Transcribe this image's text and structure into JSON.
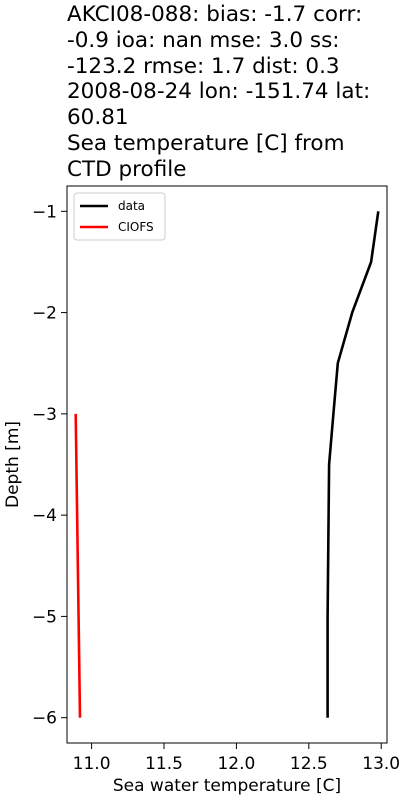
{
  "chart_data": {
    "type": "line",
    "title": "AKCI08-088: bias: -1.7  corr:\n-0.9  ioa: nan  mse: 3.0  ss:\n-123.2  rmse: 1.7  dist: 0.3\n2008-08-24 lon: -151.74 lat:\n60.81\nSea temperature [C] from\nCTD profile",
    "xlabel": "Sea water temperature [C]",
    "ylabel": "Depth [m]",
    "xlim": [
      10.83,
      13.04
    ],
    "ylim": [
      -6.25,
      -0.75
    ],
    "xticks": [
      11.0,
      11.5,
      12.0,
      12.5,
      13.0
    ],
    "xtick_labels": [
      "11.0",
      "11.5",
      "12.0",
      "12.5",
      "13.0"
    ],
    "yticks": [
      -1,
      -2,
      -3,
      -4,
      -5,
      -6
    ],
    "ytick_labels": [
      "−1",
      "−2",
      "−3",
      "−4",
      "−5",
      "−6"
    ],
    "grid": false,
    "legend_position": "upper-left",
    "series": [
      {
        "name": "data",
        "color": "#000000",
        "x": [
          12.98,
          12.93,
          12.8,
          12.7,
          12.67,
          12.64,
          12.63,
          12.63
        ],
        "y": [
          -1.0,
          -1.5,
          -2.0,
          -2.5,
          -3.0,
          -3.5,
          -5.0,
          -6.0
        ]
      },
      {
        "name": "CIOFS",
        "color": "#ff0000",
        "x": [
          10.89,
          10.92
        ],
        "y": [
          -3.0,
          -6.0
        ]
      }
    ]
  }
}
